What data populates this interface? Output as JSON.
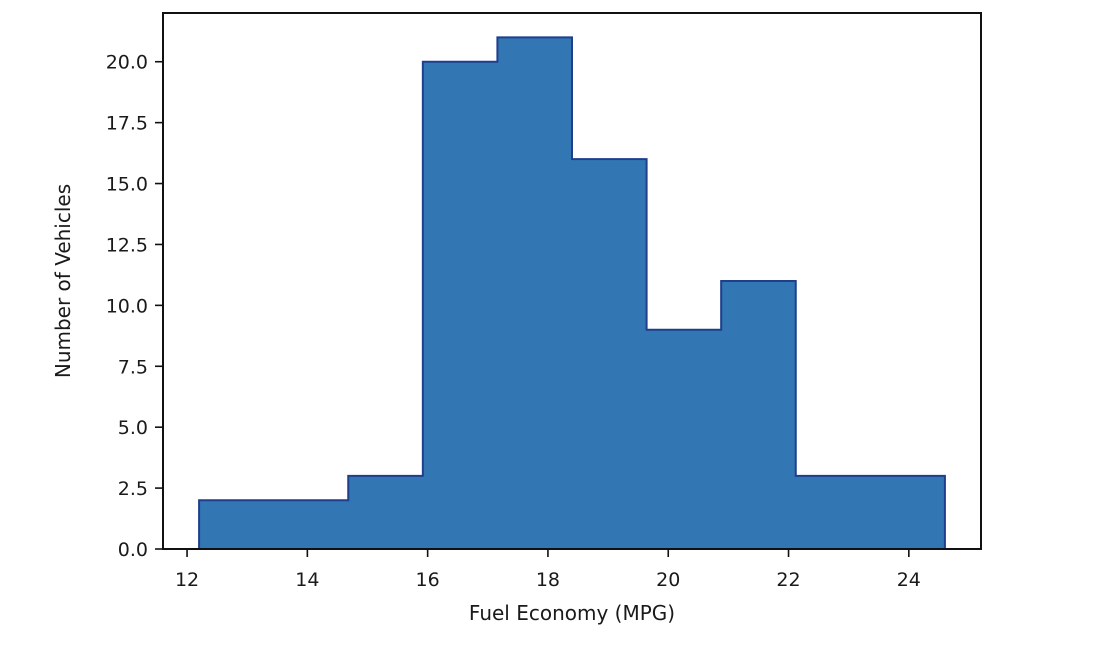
{
  "chart_data": {
    "type": "bar",
    "histogram": true,
    "title": "",
    "xlabel": "Fuel Economy (MPG)",
    "ylabel": "Number of Vehicles",
    "bin_edges": [
      12.2,
      13.44,
      14.68,
      15.92,
      17.16,
      18.4,
      19.64,
      20.88,
      22.12,
      23.36,
      24.6
    ],
    "values": [
      2,
      2,
      3,
      20,
      21,
      16,
      9,
      11,
      3,
      3
    ],
    "xlim": [
      11.6,
      25.2
    ],
    "ylim": [
      0,
      22
    ],
    "xticks": [
      12,
      14,
      16,
      18,
      20,
      22,
      24
    ],
    "xtick_labels": [
      "12",
      "14",
      "16",
      "18",
      "20",
      "22",
      "24"
    ],
    "yticks": [
      0,
      2.5,
      5,
      7.5,
      10,
      12.5,
      15,
      17.5,
      20
    ],
    "ytick_labels": [
      "0.0",
      "2.5",
      "5.0",
      "7.5",
      "10.0",
      "12.5",
      "15.0",
      "17.5",
      "20.0"
    ],
    "grid": false,
    "legend": "none",
    "colors": {
      "fill": "#3277b4",
      "edge": "#1f3f8c",
      "axis": "#111111"
    }
  }
}
